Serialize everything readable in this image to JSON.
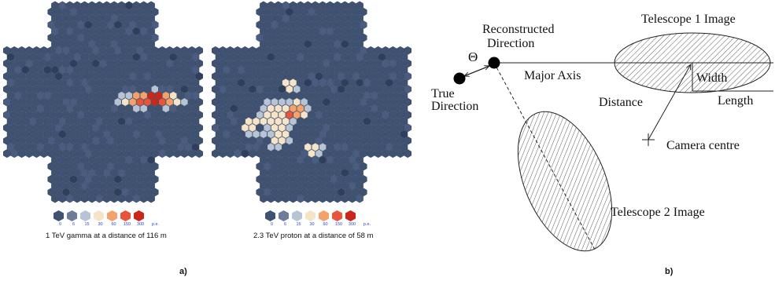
{
  "panel_a": {
    "label": "a)",
    "legend": {
      "values": [
        "0",
        "6",
        "15",
        "30",
        "60",
        "150",
        "300"
      ],
      "unit": "p.e.",
      "colors": [
        "#3f5272",
        "#6c7d9b",
        "#b7c4d5",
        "#f6e4c8",
        "#f4a26a",
        "#e8553a",
        "#cc2619"
      ]
    },
    "camera_left": {
      "caption": "1 TeV gamma at a distance of 116 m"
    },
    "camera_right": {
      "caption": "2.3 TeV proton at a distance of 58 m"
    },
    "colors": {
      "background_pixel": "#3f5272",
      "pixel_variant": "#4a5d80",
      "dark_pixel": "#2e3e5c"
    }
  },
  "panel_b": {
    "label": "b)",
    "texts": {
      "reconstructed_line1": "Reconstructed",
      "reconstructed_line2": "Direction",
      "theta": "Θ",
      "true_line1": "True",
      "true_line2": "Direction",
      "major_axis": "Major Axis",
      "telescope1": "Telescope 1 Image",
      "width": "Width",
      "length": "Length",
      "distance": "Distance",
      "camera_centre": "Camera centre",
      "telescope2": "Telescope 2 Image"
    }
  }
}
